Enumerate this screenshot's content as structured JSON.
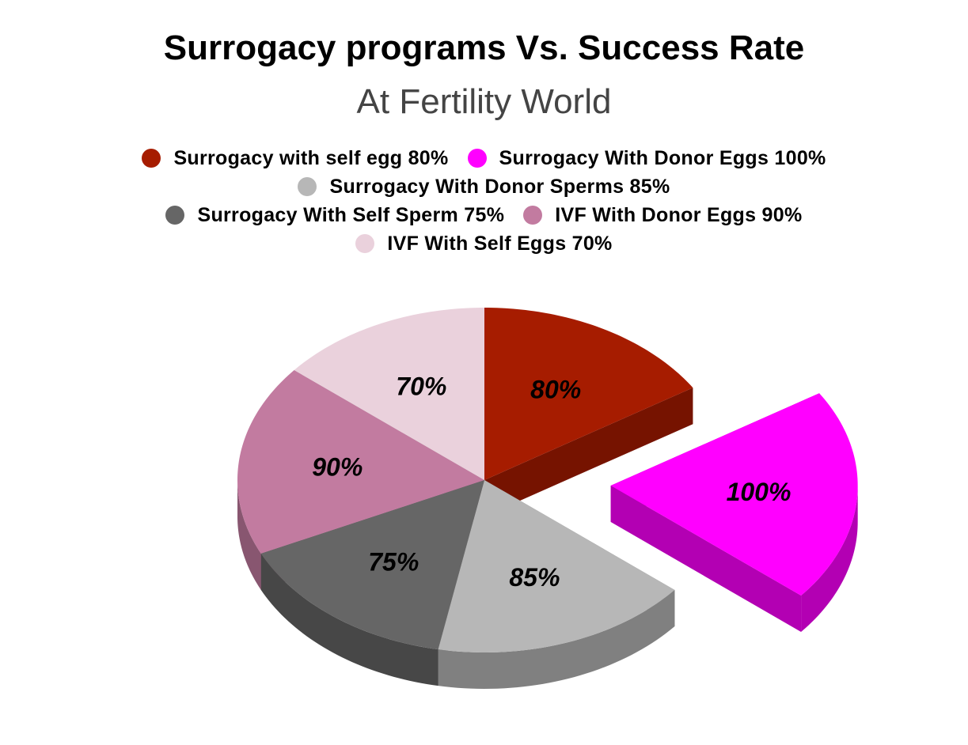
{
  "chart_data": {
    "type": "pie",
    "title": "Surrogacy programs Vs. Success Rate",
    "subtitle": "At Fertility World",
    "legend_position": "top",
    "style": "3d-exploded",
    "slices": [
      {
        "name": "Surrogacy with self egg",
        "value": 80,
        "label": "80%",
        "legend": "Surrogacy with self egg 80%",
        "color": "#A61C00",
        "side_color": "#761300",
        "exploded": false
      },
      {
        "name": "Surrogacy With Donor Eggs",
        "value": 100,
        "label": "100%",
        "legend": "Surrogacy With Donor Eggs 100%",
        "color": "#FF00FF",
        "side_color": "#B300B3",
        "exploded": true
      },
      {
        "name": "Surrogacy With Donor Sperms",
        "value": 85,
        "label": "85%",
        "legend": "Surrogacy With Donor Sperms 85%",
        "color": "#B7B7B7",
        "side_color": "#808080",
        "exploded": false
      },
      {
        "name": "Surrogacy With Self Sperm",
        "value": 75,
        "label": "75%",
        "legend": "Surrogacy With Self Sperm 75%",
        "color": "#666666",
        "side_color": "#474747",
        "exploded": false
      },
      {
        "name": "IVF With Donor Eggs",
        "value": 90,
        "label": "90%",
        "legend": "IVF With Donor Eggs 90%",
        "color": "#C27BA0",
        "side_color": "#885670",
        "exploded": false
      },
      {
        "name": "IVF With Self Eggs",
        "value": 70,
        "label": "70%",
        "legend": "IVF With Self Eggs 70%",
        "color": "#EAD1DC",
        "side_color": "#A4929A",
        "exploded": false
      }
    ]
  }
}
